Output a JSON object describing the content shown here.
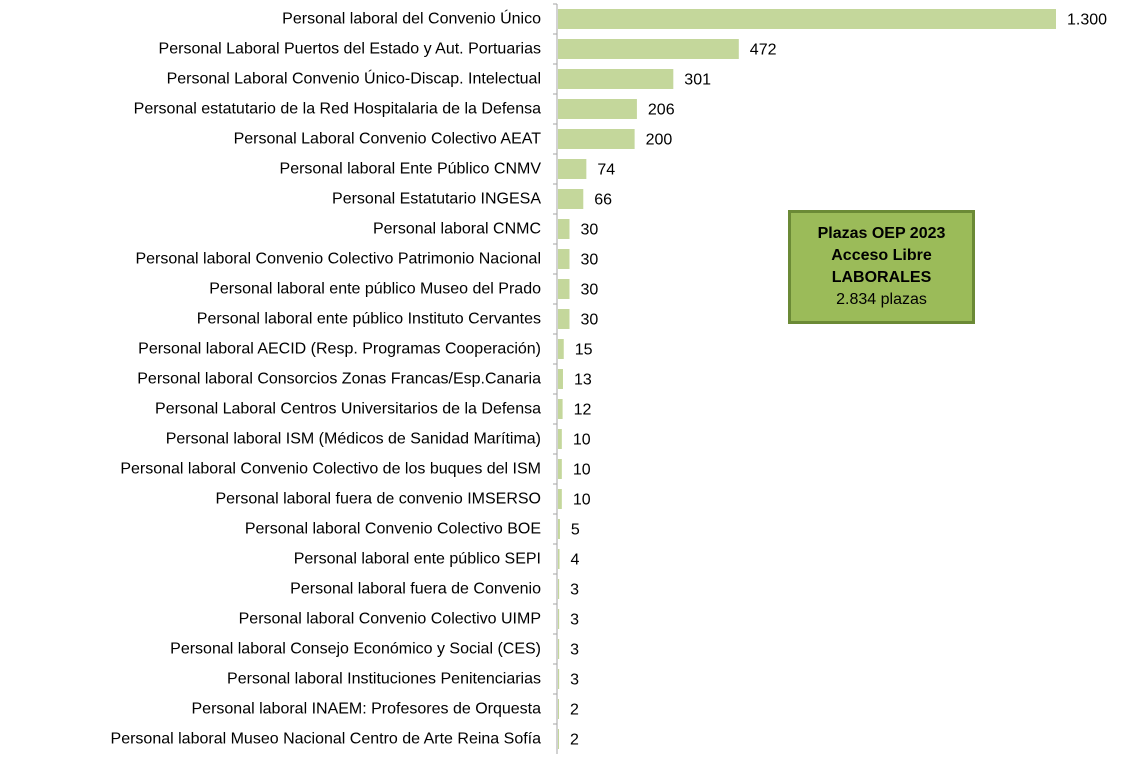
{
  "chart_data": {
    "type": "bar",
    "orientation": "horizontal",
    "categories": [
      "Personal laboral del Convenio Único",
      "Personal Laboral Puertos del Estado y Aut. Portuarias",
      "Personal Laboral Convenio Único-Discap. Intelectual",
      "Personal estatutario de la Red Hospitalaria de la Defensa",
      "Personal Laboral Convenio Colectivo AEAT",
      "Personal laboral Ente Público CNMV",
      "Personal Estatutario  INGESA",
      "Personal laboral CNMC",
      "Personal laboral Convenio Colectivo Patrimonio Nacional",
      "Personal laboral ente público Museo del Prado",
      "Personal laboral ente público Instituto Cervantes",
      "Personal laboral  AECID (Resp. Programas Cooperación)",
      "Personal laboral Consorcios Zonas Francas/Esp.Canaria",
      "Personal Laboral Centros Universitarios de la Defensa",
      "Personal laboral  ISM (Médicos de Sanidad Marítima)",
      "Personal laboral Convenio Colectivo de los buques del ISM",
      "Personal laboral fuera de convenio IMSERSO",
      "Personal laboral Convenio Colectivo BOE",
      "Personal laboral ente público SEPI",
      "Personal laboral fuera de Convenio",
      "Personal laboral Convenio Colectivo UIMP",
      "Personal laboral Consejo Económico y Social (CES)",
      "Personal laboral  Instituciones Penitenciarias",
      "Personal laboral INAEM: Profesores de Orquesta",
      "Personal laboral Museo Nacional Centro de Arte Reina Sofía"
    ],
    "values": [
      1300,
      472,
      301,
      206,
      200,
      74,
      66,
      30,
      30,
      30,
      30,
      15,
      13,
      12,
      10,
      10,
      10,
      5,
      4,
      3,
      3,
      3,
      3,
      2,
      2
    ],
    "value_labels": [
      "1.300",
      "472",
      "301",
      "206",
      "200",
      "74",
      "66",
      "30",
      "30",
      "30",
      "30",
      "15",
      "13",
      "12",
      "10",
      "10",
      "10",
      "5",
      "4",
      "3",
      "3",
      "3",
      "3",
      "2",
      "2"
    ],
    "xlim": [
      0,
      1300
    ],
    "bar_color": "#c4d79b",
    "axis_color": "#a6a6a6",
    "grid": false,
    "legend": false
  },
  "info_box": {
    "line1": "Plazas OEP 2023",
    "line2": "Acceso Libre",
    "line3": "LABORALES",
    "line4": "2.834 plazas",
    "fill_color": "#9bbb59",
    "border_color": "#6b8a36"
  }
}
